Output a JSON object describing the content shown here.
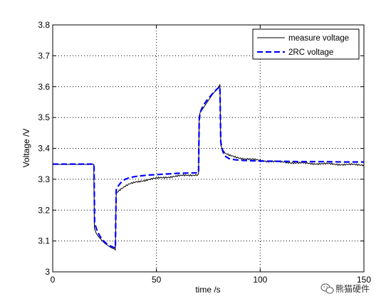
{
  "chart_data": {
    "type": "line",
    "title": "",
    "xlabel": "time /s",
    "ylabel": "Voltage /V",
    "xlim": [
      0,
      150
    ],
    "ylim": [
      3.0,
      3.8
    ],
    "x_ticks": [
      0,
      50,
      100,
      150
    ],
    "y_ticks": [
      3.0,
      3.1,
      3.2,
      3.3,
      3.4,
      3.5,
      3.6,
      3.7,
      3.8
    ],
    "x_tick_labels": [
      "0",
      "50",
      "100",
      "150"
    ],
    "y_tick_labels": [
      "3",
      "3.1",
      "3.2",
      "3.3",
      "3.4",
      "3.5",
      "3.6",
      "3.7",
      "3.8"
    ],
    "grid": true,
    "legend_position": "top-right",
    "series": [
      {
        "name": "measure voltage",
        "color": "#000000",
        "style": "solid",
        "points": [
          [
            0,
            3.348
          ],
          [
            19.8,
            3.348
          ],
          [
            20.1,
            3.14
          ],
          [
            21,
            3.125
          ],
          [
            22,
            3.115
          ],
          [
            23,
            3.107
          ],
          [
            24,
            3.1
          ],
          [
            25,
            3.093
          ],
          [
            26,
            3.088
          ],
          [
            27,
            3.083
          ],
          [
            28,
            3.079
          ],
          [
            29,
            3.076
          ],
          [
            30,
            3.073
          ],
          [
            30.2,
            3.07
          ],
          [
            30.6,
            3.255
          ],
          [
            31,
            3.258
          ],
          [
            32,
            3.265
          ],
          [
            33,
            3.27
          ],
          [
            34,
            3.274
          ],
          [
            35,
            3.278
          ],
          [
            37,
            3.284
          ],
          [
            40,
            3.29
          ],
          [
            43,
            3.295
          ],
          [
            46,
            3.299
          ],
          [
            50,
            3.303
          ],
          [
            55,
            3.307
          ],
          [
            60,
            3.31
          ],
          [
            65,
            3.313
          ],
          [
            70,
            3.315
          ],
          [
            70.3,
            3.318
          ],
          [
            70.6,
            3.505
          ],
          [
            71,
            3.515
          ],
          [
            72,
            3.525
          ],
          [
            73,
            3.535
          ],
          [
            74,
            3.545
          ],
          [
            75,
            3.555
          ],
          [
            76,
            3.565
          ],
          [
            77,
            3.575
          ],
          [
            78,
            3.583
          ],
          [
            79,
            3.59
          ],
          [
            80,
            3.598
          ],
          [
            80.6,
            3.607
          ],
          [
            81,
            3.41
          ],
          [
            82,
            3.395
          ],
          [
            83,
            3.385
          ],
          [
            85,
            3.377
          ],
          [
            88,
            3.372
          ],
          [
            92,
            3.367
          ],
          [
            96,
            3.364
          ],
          [
            100,
            3.361
          ],
          [
            105,
            3.358
          ],
          [
            110,
            3.356
          ],
          [
            115,
            3.354
          ],
          [
            120,
            3.352
          ],
          [
            125,
            3.351
          ],
          [
            130,
            3.35
          ],
          [
            135,
            3.349
          ],
          [
            140,
            3.348
          ],
          [
            145,
            3.347
          ],
          [
            150,
            3.347
          ]
        ]
      },
      {
        "name": "2RC voltage",
        "color": "#0000ff",
        "style": "dashed",
        "points": [
          [
            0,
            3.349
          ],
          [
            19.9,
            3.349
          ],
          [
            20.2,
            3.16
          ],
          [
            21,
            3.14
          ],
          [
            22,
            3.125
          ],
          [
            23,
            3.113
          ],
          [
            24,
            3.104
          ],
          [
            25,
            3.097
          ],
          [
            26,
            3.091
          ],
          [
            27,
            3.087
          ],
          [
            28,
            3.083
          ],
          [
            29,
            3.08
          ],
          [
            30,
            3.078
          ],
          [
            30.2,
            3.077
          ],
          [
            30.6,
            3.265
          ],
          [
            31,
            3.272
          ],
          [
            32,
            3.282
          ],
          [
            33,
            3.29
          ],
          [
            34,
            3.296
          ],
          [
            35,
            3.3
          ],
          [
            37,
            3.305
          ],
          [
            40,
            3.309
          ],
          [
            45,
            3.313
          ],
          [
            50,
            3.315
          ],
          [
            55,
            3.317
          ],
          [
            60,
            3.319
          ],
          [
            65,
            3.32
          ],
          [
            70,
            3.321
          ],
          [
            70.3,
            3.321
          ],
          [
            70.6,
            3.49
          ],
          [
            71,
            3.515
          ],
          [
            72,
            3.531
          ],
          [
            73,
            3.543
          ],
          [
            74,
            3.553
          ],
          [
            75,
            3.561
          ],
          [
            76,
            3.569
          ],
          [
            77,
            3.577
          ],
          [
            78,
            3.584
          ],
          [
            79,
            3.591
          ],
          [
            80,
            3.597
          ],
          [
            80.6,
            3.6
          ],
          [
            81,
            3.42
          ],
          [
            82,
            3.39
          ],
          [
            83,
            3.375
          ],
          [
            85,
            3.367
          ],
          [
            88,
            3.363
          ],
          [
            92,
            3.361
          ],
          [
            96,
            3.36
          ],
          [
            100,
            3.359
          ],
          [
            110,
            3.358
          ],
          [
            120,
            3.357
          ],
          [
            130,
            3.357
          ],
          [
            140,
            3.356
          ],
          [
            150,
            3.356
          ]
        ]
      }
    ]
  },
  "watermark": {
    "text": "熊猫硬件",
    "icon": "wechat-icon"
  }
}
